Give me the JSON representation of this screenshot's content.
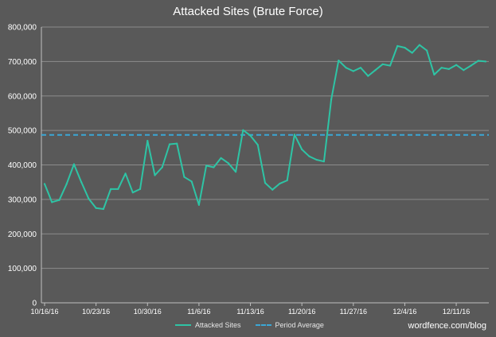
{
  "chart_data": {
    "type": "line",
    "title": "Attacked Sites (Brute Force)",
    "xlabel": "",
    "ylabel": "",
    "ylim": [
      0,
      800000
    ],
    "yticks": [
      0,
      100000,
      200000,
      300000,
      400000,
      500000,
      600000,
      700000,
      800000
    ],
    "ytick_labels": [
      "0",
      "100,000",
      "200,000",
      "300,000",
      "400,000",
      "500,000",
      "600,000",
      "700,000",
      "800,000"
    ],
    "x_start": "10/16/16",
    "x_end": "12/15/16",
    "xtick_labels": [
      "10/16/16",
      "10/23/16",
      "10/30/16",
      "11/6/16",
      "11/13/16",
      "11/20/16",
      "11/27/16",
      "12/4/16",
      "12/11/16"
    ],
    "grid": true,
    "legend_position": "bottom",
    "series": [
      {
        "name": "Attacked Sites",
        "color": "#2ec4a5",
        "style": "solid",
        "values": [
          345000,
          292000,
          298000,
          345000,
          402000,
          350000,
          302000,
          275000,
          272000,
          330000,
          330000,
          375000,
          320000,
          330000,
          470000,
          370000,
          393000,
          460000,
          462000,
          365000,
          352000,
          284000,
          398000,
          393000,
          420000,
          405000,
          380000,
          501000,
          485000,
          458000,
          348000,
          328000,
          346000,
          355000,
          488000,
          445000,
          425000,
          415000,
          410000,
          590000,
          703000,
          682000,
          672000,
          682000,
          658000,
          675000,
          692000,
          688000,
          745000,
          740000,
          725000,
          748000,
          732000,
          662000,
          682000,
          678000,
          690000,
          675000,
          688000,
          702000,
          700000
        ]
      },
      {
        "name": "Period Average",
        "color": "#3aa7d6",
        "style": "dashed",
        "values": [
          487000
        ]
      }
    ]
  },
  "source_note": "wordfence.com/blog"
}
